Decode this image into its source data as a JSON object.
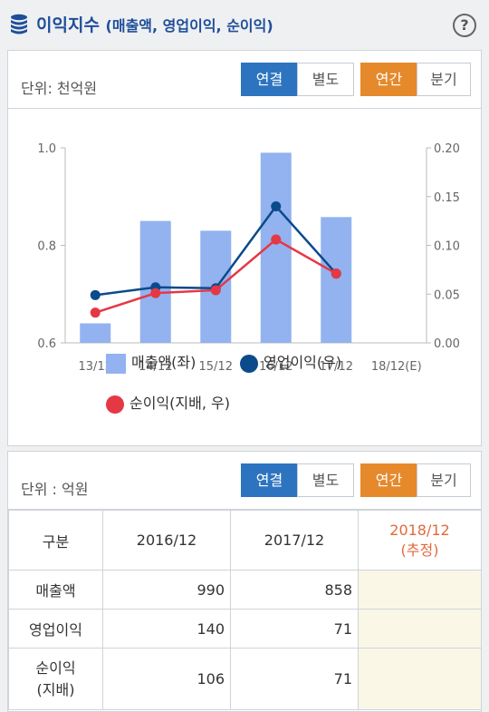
{
  "header": {
    "title": "이익지수",
    "subtitle": "(매출액, 영업이익, 순이익)",
    "help": "?"
  },
  "chart_panel": {
    "unit": "단위: 천억원",
    "buttons": {
      "consolidated": "연결",
      "separate": "별도",
      "annual": "연간",
      "quarterly": "분기"
    }
  },
  "chart_data": {
    "type": "bar",
    "categories": [
      "13/12",
      "14/12",
      "15/12",
      "16/12",
      "17/12",
      "18/12(E)"
    ],
    "y_left": {
      "range": [
        0.6,
        1.0
      ],
      "ticks": [
        "0.6",
        "0.8",
        "1.0"
      ]
    },
    "y_right": {
      "range": [
        0.0,
        0.2
      ],
      "ticks": [
        "0.00",
        "0.05",
        "0.10",
        "0.15",
        "0.20"
      ]
    },
    "series": [
      {
        "name": "매출액(좌)",
        "kind": "bar",
        "axis": "left",
        "color": "#93b2f0",
        "values": [
          0.64,
          0.85,
          0.83,
          0.99,
          0.858,
          null
        ]
      },
      {
        "name": "영업이익(우)",
        "kind": "line",
        "axis": "right",
        "color": "#0b4a8b",
        "values": [
          0.049,
          0.057,
          0.056,
          0.14,
          0.071,
          null
        ]
      },
      {
        "name": "순이익(지배, 우)",
        "kind": "line",
        "axis": "right",
        "color": "#e53845",
        "values": [
          0.031,
          0.051,
          0.054,
          0.106,
          0.071,
          null
        ]
      }
    ]
  },
  "table_panel": {
    "unit": "단위 : 억원",
    "buttons": {
      "consolidated": "연결",
      "separate": "별도",
      "annual": "연간",
      "quarterly": "분기"
    },
    "headers": [
      "구분",
      "2016/12",
      "2017/12",
      "2018/12\n(추정)"
    ],
    "rows": [
      {
        "label": "매출액",
        "values": [
          "990",
          "858",
          ""
        ]
      },
      {
        "label": "영업이익",
        "values": [
          "140",
          "71",
          ""
        ]
      },
      {
        "label": "순이익\n(지배)",
        "values": [
          "106",
          "71",
          ""
        ]
      }
    ]
  }
}
